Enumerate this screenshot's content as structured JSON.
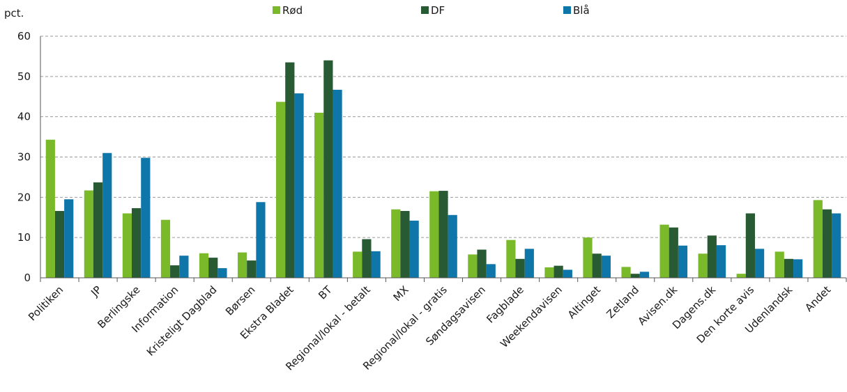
{
  "chart_data": {
    "type": "bar",
    "unit_label": "pct.",
    "categories": [
      "Politiken",
      "JP",
      "Berlingske",
      "Information",
      "Kristeligt Dagblad",
      "Børsen",
      "Ekstra Bladet",
      "BT",
      "Regional/lokal - betalt",
      "MX",
      "Regional/lokal - gratis",
      "Søndagsavisen",
      "Fagblade",
      "Weekendavisen",
      "Altinget",
      "Zetland",
      "Avisen.dk",
      "Dagens.dk",
      "Den korte avis",
      "Udenlandsk",
      "Andet"
    ],
    "series": [
      {
        "name": "Rød",
        "color": "#7aba2a",
        "values": [
          34.3,
          21.7,
          16.0,
          14.4,
          6.1,
          6.3,
          43.7,
          41.0,
          6.5,
          17.0,
          21.5,
          5.8,
          9.4,
          2.6,
          10.0,
          2.7,
          13.2,
          6.0,
          1.0,
          6.5,
          19.3
        ]
      },
      {
        "name": "DF",
        "color": "#285a33",
        "values": [
          16.6,
          23.7,
          17.3,
          3.1,
          5.0,
          4.3,
          53.5,
          54.0,
          9.6,
          16.6,
          21.6,
          7.0,
          4.7,
          3.0,
          6.0,
          1.0,
          12.5,
          10.5,
          16.0,
          4.7,
          17.0
        ]
      },
      {
        "name": "Blå",
        "color": "#0f76a9",
        "values": [
          19.5,
          31.0,
          29.8,
          5.5,
          2.4,
          18.8,
          45.8,
          46.7,
          6.6,
          14.2,
          15.6,
          3.4,
          7.2,
          2.0,
          5.5,
          1.5,
          8.0,
          8.1,
          7.2,
          4.6,
          16.0
        ]
      }
    ],
    "ylim": [
      0,
      60
    ],
    "yticks": [
      0,
      10,
      20,
      30,
      40,
      50,
      60
    ],
    "grid": true,
    "legend_position": "top-center"
  }
}
